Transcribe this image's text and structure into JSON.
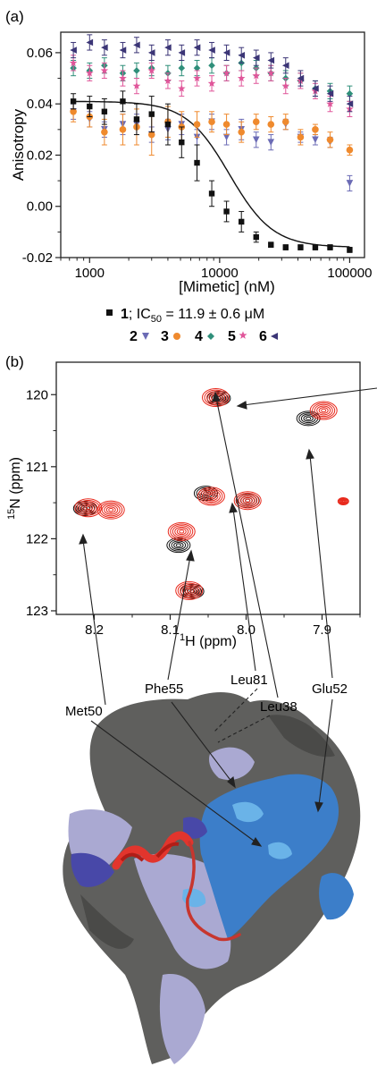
{
  "chart_data": [
    {
      "panel_label": "(a)",
      "type": "scatter",
      "xlabel": "[Mimetic] (nM)",
      "ylabel": "Anisotropy",
      "x_scale": "log",
      "xlim": [
        600,
        130000
      ],
      "ylim": [
        -0.02,
        0.068
      ],
      "x_ticks": [
        1000,
        10000,
        100000
      ],
      "x_tick_labels": [
        "1000",
        "10000",
        "100000"
      ],
      "y_ticks": [
        -0.02,
        0.0,
        0.02,
        0.04,
        0.06
      ],
      "y_tick_labels": [
        "-0.02",
        "0.00",
        "0.02",
        "0.04",
        "0.06"
      ],
      "x_values": [
        750,
        1000,
        1300,
        1800,
        2300,
        3000,
        4000,
        5100,
        6700,
        8700,
        11300,
        14700,
        19100,
        24800,
        32200,
        41900,
        54400,
        70700,
        100000
      ],
      "series": [
        {
          "legend": "1",
          "legend_suffix": "; IC",
          "legend_sub": "50",
          "legend_value": " = 11.9 ± 0.6 μM",
          "marker": "square",
          "color": "#111111",
          "values": [
            0.041,
            0.039,
            0.037,
            0.041,
            0.034,
            0.036,
            0.032,
            0.025,
            0.017,
            0.005,
            -0.002,
            -0.006,
            -0.012,
            -0.015,
            -0.016,
            -0.016,
            -0.016,
            -0.016,
            -0.017
          ],
          "errors": [
            0.003,
            0.004,
            0.005,
            0.004,
            0.006,
            0.007,
            0.008,
            0.006,
            0.007,
            0.005,
            0.004,
            0.004,
            0.002,
            0.001,
            0.001,
            0.001,
            0.001,
            0.001,
            0.001
          ],
          "fit": {
            "top": 0.041,
            "bottom": -0.016,
            "ic50": 11900,
            "hill": 2.6
          }
        },
        {
          "legend": "2",
          "marker": "triangle-down",
          "color": "#6b6bb5",
          "values": [
            0.037,
            0.034,
            0.03,
            0.032,
            0.032,
            0.028,
            0.03,
            0.032,
            0.027,
            0.033,
            0.027,
            0.03,
            0.026,
            0.025,
            0.032,
            0.027,
            0.026,
            0.025,
            0.009
          ],
          "errors": [
            0.003,
            0.003,
            0.003,
            0.004,
            0.004,
            0.003,
            0.004,
            0.004,
            0.003,
            0.003,
            0.003,
            0.004,
            0.003,
            0.003,
            0.002,
            0.002,
            0.002,
            0.002,
            0.003
          ]
        },
        {
          "legend": "3",
          "marker": "circle",
          "color": "#ef8a2e",
          "values": [
            0.037,
            0.035,
            0.029,
            0.03,
            0.031,
            0.028,
            0.033,
            0.031,
            0.032,
            0.033,
            0.032,
            0.029,
            0.033,
            0.032,
            0.033,
            0.027,
            0.03,
            0.026,
            0.022
          ],
          "errors": [
            0.004,
            0.004,
            0.005,
            0.006,
            0.007,
            0.008,
            0.006,
            0.006,
            0.005,
            0.004,
            0.004,
            0.004,
            0.003,
            0.003,
            0.003,
            0.003,
            0.002,
            0.003,
            0.002
          ]
        },
        {
          "legend": "4",
          "marker": "diamond",
          "color": "#2f8f7a",
          "values": [
            0.054,
            0.053,
            0.055,
            0.052,
            0.053,
            0.054,
            0.052,
            0.054,
            0.054,
            0.055,
            0.052,
            0.056,
            0.054,
            0.052,
            0.05,
            0.049,
            0.046,
            0.045,
            0.044
          ],
          "errors": [
            0.003,
            0.003,
            0.003,
            0.003,
            0.003,
            0.003,
            0.003,
            0.003,
            0.003,
            0.003,
            0.003,
            0.003,
            0.003,
            0.003,
            0.003,
            0.003,
            0.003,
            0.003,
            0.003
          ]
        },
        {
          "legend": "5",
          "marker": "star",
          "color": "#e0569a",
          "values": [
            0.056,
            0.052,
            0.053,
            0.05,
            0.047,
            0.053,
            0.049,
            0.046,
            0.05,
            0.048,
            0.052,
            0.05,
            0.051,
            0.052,
            0.047,
            0.049,
            0.045,
            0.04,
            0.038
          ],
          "errors": [
            0.003,
            0.003,
            0.003,
            0.003,
            0.003,
            0.003,
            0.003,
            0.003,
            0.003,
            0.003,
            0.003,
            0.003,
            0.003,
            0.003,
            0.003,
            0.003,
            0.003,
            0.003,
            0.003
          ]
        },
        {
          "legend": "6",
          "marker": "triangle-left",
          "color": "#3b3576",
          "values": [
            0.061,
            0.064,
            0.062,
            0.061,
            0.063,
            0.06,
            0.062,
            0.06,
            0.062,
            0.061,
            0.06,
            0.059,
            0.058,
            0.057,
            0.055,
            0.05,
            0.046,
            0.044,
            0.04
          ],
          "errors": [
            0.003,
            0.003,
            0.003,
            0.003,
            0.003,
            0.003,
            0.003,
            0.003,
            0.003,
            0.003,
            0.003,
            0.003,
            0.003,
            0.003,
            0.003,
            0.003,
            0.003,
            0.003,
            0.003
          ]
        }
      ]
    },
    {
      "panel_label": "(b)",
      "type": "scatter",
      "xlabel_sup": "1",
      "xlabel": "H (ppm)",
      "ylabel_sup": "15",
      "ylabel": "N (ppm)",
      "xlim": [
        8.25,
        7.85
      ],
      "ylim": [
        123.05,
        119.55
      ],
      "x_ticks": [
        8.2,
        8.1,
        8.0,
        7.9
      ],
      "x_tick_labels": [
        "8.2",
        "8.1",
        "8.0",
        "7.9"
      ],
      "y_ticks": [
        120,
        121,
        122,
        123
      ],
      "y_tick_labels": [
        "120",
        "121",
        "122",
        "123"
      ],
      "series_colors": {
        "free": "#111111",
        "bound": "#e8291c"
      },
      "peaks_free": [
        {
          "x": 8.212,
          "y": 121.58
        },
        {
          "x": 8.036,
          "y": 120.05
        },
        {
          "x": 7.918,
          "y": 120.33
        },
        {
          "x": 8.053,
          "y": 121.37
        },
        {
          "x": 7.998,
          "y": 121.47
        },
        {
          "x": 8.089,
          "y": 122.09
        },
        {
          "x": 8.071,
          "y": 122.73
        }
      ],
      "peaks_bound": [
        {
          "x": 8.208,
          "y": 121.57
        },
        {
          "x": 8.178,
          "y": 121.6
        },
        {
          "x": 8.04,
          "y": 120.04
        },
        {
          "x": 7.898,
          "y": 120.22
        },
        {
          "x": 8.046,
          "y": 121.41
        },
        {
          "x": 7.998,
          "y": 121.47
        },
        {
          "x": 8.085,
          "y": 121.9
        },
        {
          "x": 8.075,
          "y": 122.72
        },
        {
          "x": 7.872,
          "y": 121.48
        }
      ],
      "assignments": [
        {
          "label": "Met50",
          "peak": {
            "x": 8.212,
            "y": 121.58
          }
        },
        {
          "label": "Phe55",
          "peak": {
            "x": 8.089,
            "y": 122.09
          }
        },
        {
          "label": "Leu81",
          "peak": {
            "x": 8.03,
            "y": 121.47
          }
        },
        {
          "label": "Leu38",
          "peak": {
            "x": 8.036,
            "y": 120.05
          }
        },
        {
          "label": "Glu52",
          "peak": {
            "x": 7.918,
            "y": 120.33
          }
        }
      ]
    }
  ],
  "surface_colors": {
    "grey": "#5f5f5d",
    "blue": "#3c7ec9",
    "lightblue": "#6ab3e8",
    "lavender": "#aaa9d2",
    "purple": "#4848a8",
    "helix": "#e2352d"
  }
}
